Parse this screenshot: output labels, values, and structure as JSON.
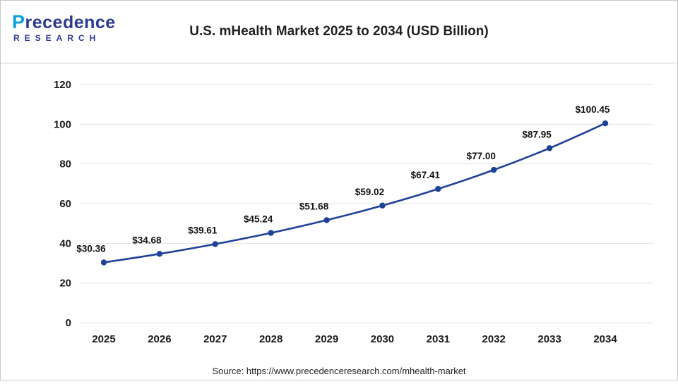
{
  "header": {
    "title": "U.S. mHealth Market 2025 to 2034 (USD Billion)",
    "logo": {
      "p": "P",
      "line1_rest": "recedence",
      "line2": "RESEARCH"
    }
  },
  "footer": {
    "source": "Source: https://www.precedenceresearch.com/mhealth-market"
  },
  "colors": {
    "accent": "#1f4098",
    "logo_navy": "#2b3990",
    "logo_teal": "#0aa2dc",
    "grid": "#e3e3e3",
    "text": "#1a1a1a"
  },
  "chart_data": {
    "type": "line",
    "title": "U.S. mHealth Market 2025 to 2034 (USD Billion)",
    "categories": [
      "2025",
      "2026",
      "2027",
      "2028",
      "2029",
      "2030",
      "2031",
      "2032",
      "2033",
      "2034"
    ],
    "values": [
      30.36,
      34.68,
      39.61,
      45.24,
      51.68,
      59.02,
      67.41,
      77.0,
      87.95,
      100.45
    ],
    "labels": [
      "$30.36",
      "$34.68",
      "$39.61",
      "$45.24",
      "$51.68",
      "$59.02",
      "$67.41",
      "$77.00",
      "$87.95",
      "$100.45"
    ],
    "xlabel": "",
    "ylabel": "",
    "ylim": [
      0,
      120
    ],
    "yticks": [
      0,
      20,
      40,
      60,
      80,
      100,
      120
    ],
    "grid": true,
    "legend": "none",
    "line_color": "#1f4098",
    "marker": "circle"
  }
}
